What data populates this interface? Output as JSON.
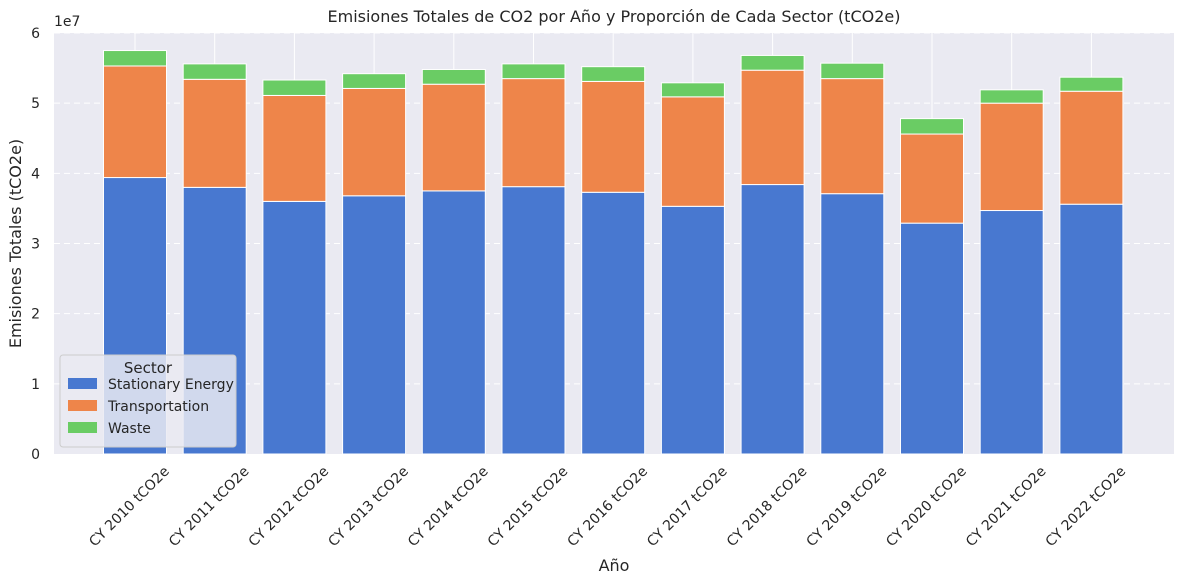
{
  "chart_data": {
    "type": "bar",
    "stacked": true,
    "title": "Emisiones Totales de CO2 por Año y Proporción de Cada Sector (tCO2e)",
    "xlabel": "Año",
    "ylabel": "Emisiones Totales (tCO2e)",
    "y_offset_label": "1e7",
    "y_scale": 10000000,
    "ylim": [
      0,
      60000000
    ],
    "yticks": [
      0,
      10000000,
      20000000,
      30000000,
      40000000,
      50000000,
      60000000
    ],
    "ytick_labels": [
      "0",
      "1",
      "2",
      "3",
      "4",
      "5",
      "6"
    ],
    "grid": true,
    "legend_title": "Sector",
    "legend_position": "lower-left",
    "categories": [
      "CY 2010 tCO2e",
      "CY 2011 tCO2e",
      "CY 2012 tCO2e",
      "CY 2013 tCO2e",
      "CY 2014 tCO2e",
      "CY 2015 tCO2e",
      "CY 2016 tCO2e",
      "CY 2017 tCO2e",
      "CY 2018 tCO2e",
      "CY 2019 tCO2e",
      "CY 2020 tCO2e",
      "CY 2021 tCO2e",
      "CY 2022 tCO2e"
    ],
    "series": [
      {
        "name": "Stationary Energy",
        "color": "#4878d0",
        "values": [
          39400000,
          38000000,
          36000000,
          36800000,
          37500000,
          38100000,
          37300000,
          35300000,
          38400000,
          37100000,
          32900000,
          34700000,
          35600000
        ]
      },
      {
        "name": "Transportation",
        "color": "#ee854a",
        "values": [
          15900000,
          15400000,
          15100000,
          15300000,
          15200000,
          15400000,
          15800000,
          15600000,
          16300000,
          16400000,
          12700000,
          15300000,
          16100000
        ]
      },
      {
        "name": "Waste",
        "color": "#6acc64",
        "values": [
          2200000,
          2200000,
          2200000,
          2100000,
          2100000,
          2100000,
          2100000,
          2000000,
          2100000,
          2200000,
          2200000,
          1900000,
          2000000
        ]
      }
    ]
  }
}
